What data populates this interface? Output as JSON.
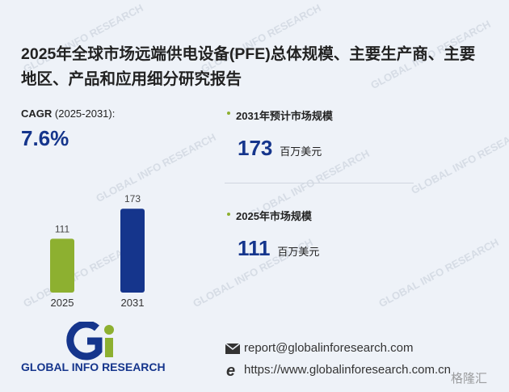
{
  "title": "2025年全球市场远端供电设备(PFE)总体规模、主要生产商、主要地区、产品和应用细分研究报告",
  "cagr": {
    "label": "CAGR",
    "period": "(2025-2031):",
    "value": "7.6%"
  },
  "chart_data": {
    "type": "bar",
    "categories": [
      "2025",
      "2031"
    ],
    "values": [
      111,
      173
    ],
    "colors": [
      "#8db030",
      "#15358c"
    ]
  },
  "stats": [
    {
      "label": "2031年预计市场规模",
      "unit": "百万美元"
    },
    {
      "label": "2025年市场规模",
      "unit": "百万美元"
    }
  ],
  "logo": {
    "text": "GLOBAL INFO RESEARCH"
  },
  "contact": {
    "email": "report@globalinforesearch.com",
    "url": "https://www.globalinforesearch.com.cn"
  },
  "watermark": "格隆汇"
}
